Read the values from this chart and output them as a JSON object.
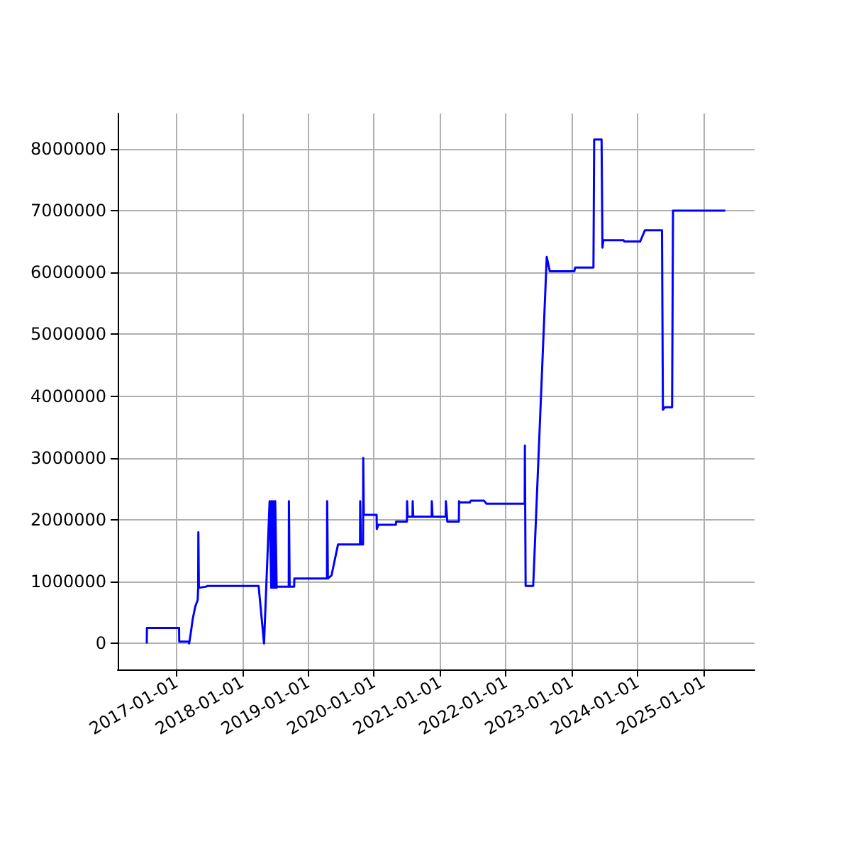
{
  "chart_data": {
    "type": "line",
    "xlim": [
      "2016-02-10",
      "2025-10-10"
    ],
    "ylim": [
      -420000,
      8570000
    ],
    "xticks": [
      "2017-01-01",
      "2018-01-01",
      "2019-01-01",
      "2020-01-01",
      "2021-01-01",
      "2022-01-01",
      "2023-01-01",
      "2024-01-01",
      "2025-01-01"
    ],
    "yticks": [
      0,
      1000000,
      2000000,
      3000000,
      4000000,
      5000000,
      6000000,
      7000000,
      8000000
    ],
    "grid": true,
    "marker": "none",
    "line_style": "solid",
    "series": [
      {
        "color": "#0000ff",
        "x": [
          "2016-07-20",
          "2016-07-21",
          "2017-01-15",
          "2017-01-16",
          "2017-03-10",
          "2017-03-12",
          "2017-03-20",
          "2017-04-01",
          "2017-04-15",
          "2017-04-28",
          "2017-05-01",
          "2017-05-02",
          "2017-05-05",
          "2017-06-15",
          "2017-06-20",
          "2018-04-01",
          "2018-05-01",
          "2018-06-01",
          "2018-06-10",
          "2018-06-11",
          "2018-06-20",
          "2018-06-21",
          "2018-07-01",
          "2018-07-02",
          "2018-07-10",
          "2018-07-11",
          "2018-09-15",
          "2018-09-16",
          "2018-09-20",
          "2018-10-15",
          "2018-10-16",
          "2019-04-15",
          "2019-04-16",
          "2019-04-20",
          "2019-05-10",
          "2019-06-15",
          "2019-10-15",
          "2019-10-16",
          "2019-10-20",
          "2019-11-01",
          "2019-11-02",
          "2019-11-05",
          "2020-01-15",
          "2020-01-16",
          "2020-01-25",
          "2020-05-01",
          "2020-05-02",
          "2020-07-01",
          "2020-07-02",
          "2020-07-05",
          "2020-07-10",
          "2020-08-01",
          "2020-08-02",
          "2020-08-05",
          "2020-11-15",
          "2020-11-16",
          "2020-11-20",
          "2021-02-01",
          "2021-02-02",
          "2021-02-10",
          "2021-04-15",
          "2021-04-16",
          "2021-04-20",
          "2021-06-15",
          "2021-06-20",
          "2021-09-01",
          "2021-09-15",
          "2022-04-15",
          "2022-04-16",
          "2022-04-20",
          "2022-06-01",
          "2022-08-15",
          "2022-09-01",
          "2022-09-10",
          "2023-01-15",
          "2023-01-20",
          "2023-05-01",
          "2023-05-05",
          "2023-06-15",
          "2023-06-20",
          "2023-06-25",
          "2023-10-15",
          "2023-10-20",
          "2024-01-15",
          "2024-02-10",
          "2024-05-15",
          "2024-05-20",
          "2024-06-01",
          "2024-07-10",
          "2024-07-15",
          "2025-05-01"
        ],
        "values": [
          0,
          250000,
          250000,
          30000,
          30000,
          0,
          150000,
          400000,
          600000,
          700000,
          900000,
          1800000,
          900000,
          920000,
          930000,
          930000,
          0,
          2300000,
          900000,
          2300000,
          900000,
          2300000,
          900000,
          2300000,
          900000,
          920000,
          920000,
          2300000,
          920000,
          920000,
          1050000,
          1050000,
          2300000,
          1050000,
          1100000,
          1600000,
          1600000,
          2300000,
          1600000,
          1600000,
          3000000,
          2080000,
          2080000,
          1850000,
          1920000,
          1920000,
          1970000,
          1970000,
          2300000,
          2050000,
          2050000,
          2050000,
          2300000,
          2050000,
          2050000,
          2300000,
          2050000,
          2050000,
          2300000,
          1970000,
          1970000,
          2300000,
          2280000,
          2280000,
          2310000,
          2310000,
          2260000,
          2260000,
          3200000,
          930000,
          930000,
          6250000,
          6020000,
          6020000,
          6020000,
          6080000,
          6080000,
          8150000,
          8150000,
          6400000,
          6520000,
          6520000,
          6500000,
          6500000,
          6680000,
          6680000,
          3780000,
          3820000,
          3820000,
          7000000,
          7000000
        ]
      }
    ]
  }
}
